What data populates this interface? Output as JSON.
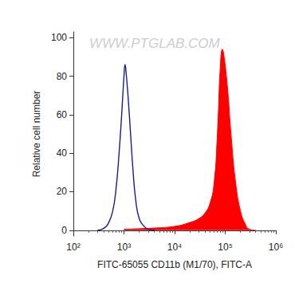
{
  "chart_data": {
    "type": "histogram",
    "x_label": "FITC-65055 CD11b (M1/70), FITC-A",
    "y_label": "Relative cell number",
    "annotations": [
      "WWW.PTGLAB.COM"
    ],
    "log": "x",
    "grid": false,
    "xlim": [
      100,
      1000000
    ],
    "xticks": [
      {
        "value": 100,
        "label": "10²"
      },
      {
        "value": 1000,
        "label": "10³"
      },
      {
        "value": 10000,
        "label": "10⁴"
      },
      {
        "value": 100000,
        "label": "10⁵"
      },
      {
        "value": 1000000,
        "label": "10⁶"
      }
    ],
    "ylim": [
      -3,
      103
    ],
    "yticks": [
      0,
      20,
      40,
      60,
      80,
      100
    ],
    "series": [
      {
        "type": "line",
        "color": "#1c1c8c",
        "marker": "none",
        "x": [
          300,
          400,
          500,
          600,
          700,
          800,
          900,
          1000,
          1050,
          1100,
          1200,
          1350,
          1500,
          1700,
          2000,
          2500,
          3000,
          4000
        ],
        "values": [
          0,
          1,
          4,
          10,
          22,
          40,
          60,
          80,
          86,
          82,
          70,
          50,
          32,
          16,
          6,
          2,
          0.5,
          0
        ]
      },
      {
        "type": "area",
        "color": "#ff0000",
        "marker": "none",
        "x": [
          1000,
          3000,
          10000,
          20000,
          30000,
          40000,
          50000,
          60000,
          70000,
          80000,
          88000,
          95000,
          110000,
          130000,
          160000,
          200000,
          250000,
          300000,
          400000
        ],
        "values": [
          0.5,
          1,
          2,
          4,
          6,
          9,
          14,
          24,
          50,
          85,
          94,
          90,
          75,
          50,
          25,
          10,
          3,
          0.5,
          0
        ]
      }
    ]
  }
}
